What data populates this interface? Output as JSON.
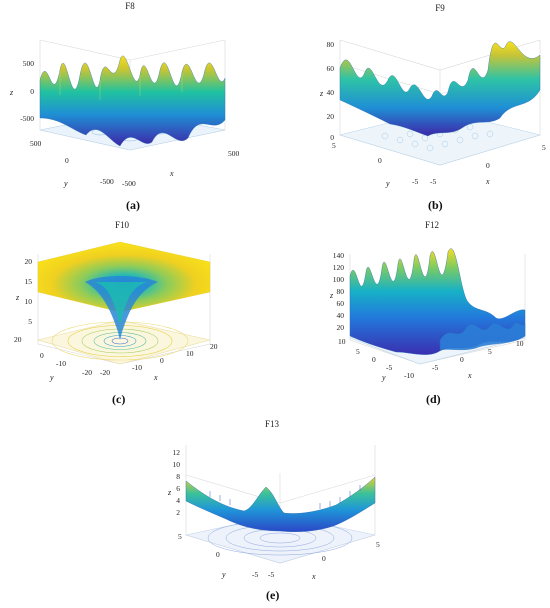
{
  "captions": {
    "a": "(a)",
    "b": "(b)",
    "c": "(c)",
    "d": "(d)",
    "e": "(e)"
  },
  "chart_data": [
    {
      "type": "surface",
      "title": "F8",
      "xlabel": "x",
      "ylabel": "y",
      "zlabel": "z",
      "xlim": [
        -500,
        500
      ],
      "ylim": [
        -500,
        500
      ],
      "zlim": [
        -500,
        500
      ],
      "x_ticks": [
        "-500",
        "500"
      ],
      "y_ticks": [
        "500",
        "0",
        "-500"
      ],
      "z_ticks": [
        "500",
        "0",
        "-500"
      ],
      "contour_floor": true,
      "colormap": "parula",
      "grid": true
    },
    {
      "type": "surface",
      "title": "F9",
      "xlabel": "x",
      "ylabel": "y",
      "zlabel": "z",
      "xlim": [
        -5,
        5
      ],
      "ylim": [
        -5,
        5
      ],
      "zlim": [
        0,
        80
      ],
      "x_ticks": [
        "-5",
        "0",
        "5"
      ],
      "y_ticks": [
        "5",
        "0",
        "-5"
      ],
      "z_ticks": [
        "80",
        "60",
        "40",
        "20",
        "0"
      ],
      "contour_floor": true,
      "colormap": "parula",
      "grid": true
    },
    {
      "type": "surface",
      "title": "F10",
      "xlabel": "x",
      "ylabel": "y",
      "zlabel": "z",
      "xlim": [
        -20,
        20
      ],
      "ylim": [
        -20,
        20
      ],
      "zlim": [
        0,
        20
      ],
      "x_ticks": [
        "-20",
        "-10",
        "0",
        "10",
        "20"
      ],
      "y_ticks": [
        "20",
        "0",
        "-10",
        "-20"
      ],
      "z_ticks": [
        "20",
        "15",
        "10",
        "5"
      ],
      "contour_floor": true,
      "colormap": "parula",
      "grid": true
    },
    {
      "type": "surface",
      "title": "F12",
      "xlabel": "x",
      "ylabel": "y",
      "zlabel": "z",
      "xlim": [
        -10,
        10
      ],
      "ylim": [
        -10,
        10
      ],
      "zlim": [
        0,
        140
      ],
      "x_ticks": [
        "-10",
        "-5",
        "0",
        "5",
        "10"
      ],
      "y_ticks": [
        "10",
        "5",
        "0",
        "-5"
      ],
      "z_ticks": [
        "140",
        "120",
        "100",
        "80",
        "60",
        "40",
        "20"
      ],
      "contour_floor": true,
      "colormap": "parula",
      "grid": true
    },
    {
      "type": "surface",
      "title": "F13",
      "xlabel": "x",
      "ylabel": "y",
      "zlabel": "z",
      "xlim": [
        -5,
        5
      ],
      "ylim": [
        -5,
        5
      ],
      "zlim": [
        0,
        12
      ],
      "x_ticks": [
        "-5",
        "0",
        "5"
      ],
      "y_ticks": [
        "5",
        "0",
        "-5"
      ],
      "z_ticks": [
        "12",
        "10",
        "8",
        "6",
        "4",
        "2"
      ],
      "contour_floor": true,
      "colormap": "parula",
      "grid": true
    }
  ]
}
